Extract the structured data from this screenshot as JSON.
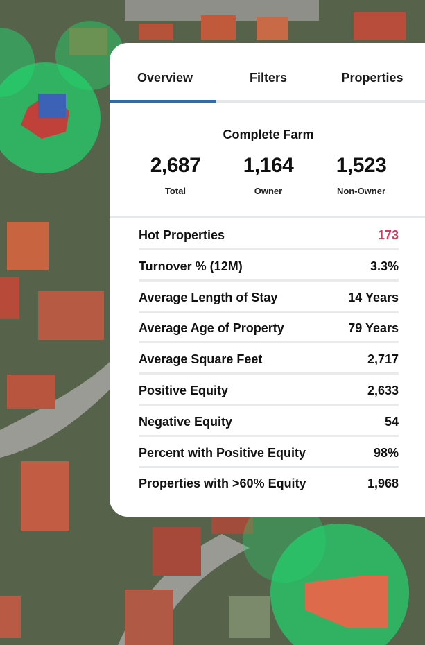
{
  "tabs": [
    "Overview",
    "Filters",
    "Properties"
  ],
  "summary": {
    "title": "Complete Farm",
    "stats": [
      {
        "value": "2,687",
        "label": "Total"
      },
      {
        "value": "1,164",
        "label": "Owner"
      },
      {
        "value": "1,523",
        "label": "Non-Owner"
      }
    ]
  },
  "rows": [
    {
      "label": "Hot Properties",
      "value": "173"
    },
    {
      "label": "Turnover % (12M)",
      "value": "3.3%"
    },
    {
      "label": "Average Length of Stay",
      "value": "14 Years"
    },
    {
      "label": "Average Age of Property",
      "value": "79 Years"
    },
    {
      "label": "Average Square Feet",
      "value": "2,717"
    },
    {
      "label": "Positive Equity",
      "value": "2,633"
    },
    {
      "label": "Negative Equity",
      "value": "54"
    },
    {
      "label": "Percent with Positive Equity",
      "value": "98%"
    },
    {
      "label": "Properties with >60% Equity",
      "value": "1,968"
    }
  ]
}
